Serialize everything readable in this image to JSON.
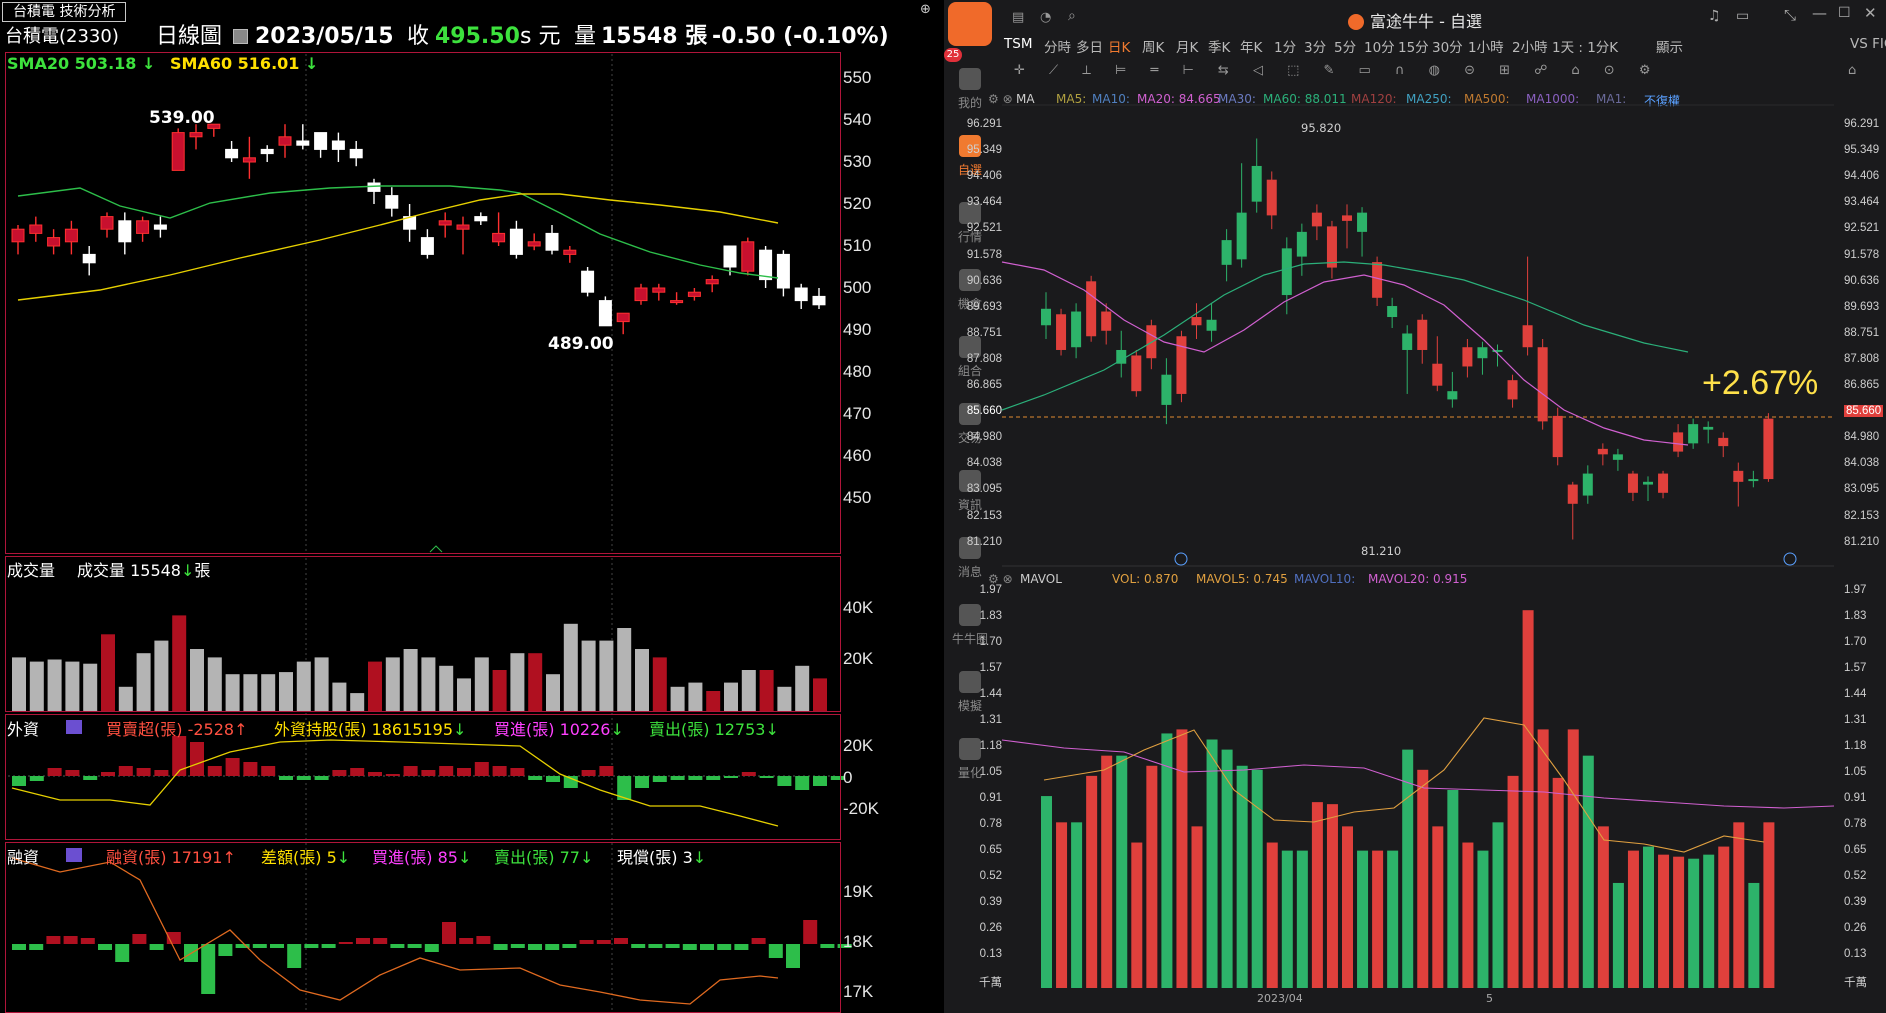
{
  "left": {
    "tab_label": "台積電 技術分析",
    "stock_name": "台積電(2330)",
    "period": "日線圖",
    "date": "2023/05/15",
    "close_label": "收",
    "close_value": "495.50",
    "unit": "s 元",
    "volume_label": "量",
    "volume_value": "15548 張",
    "change": "-0.50 (-0.10%)",
    "sma20": "SMA20 503.18",
    "sma60": "SMA60 516.01",
    "high_label": "539.00",
    "low_label": "489.00",
    "price_axis": [
      "550",
      "540",
      "530",
      "520",
      "510",
      "500",
      "490",
      "480",
      "470",
      "460",
      "450"
    ],
    "volume_panel": {
      "title": "成交量",
      "label": "成交量 15548",
      "unit": "張",
      "axis": [
        "40K",
        "20K"
      ]
    },
    "foreign_panel": {
      "title": "外資",
      "net": "買賣超(張) -2528",
      "holding": "外資持股(張) 18615195",
      "buy": "買進(張) 10226",
      "sell": "賣出(張) 12753",
      "axis": [
        "20K",
        "0",
        "-20K"
      ]
    },
    "margin_panel": {
      "title": "融資",
      "balance": "融資(張) 17191",
      "diff": "差額(張) 5",
      "buy": "買進(張) 85",
      "sell": "賣出(張) 77",
      "repay": "現償(張) 3",
      "axis": [
        "19K",
        "18K",
        "17K"
      ]
    }
  },
  "right": {
    "window_title": "富途牛牛 - 自選",
    "sidebar": [
      "我的",
      "自選",
      "行情",
      "機會",
      "組合",
      "交易",
      "資訊",
      "消息",
      "牛牛圈",
      "模擬",
      "量化"
    ],
    "messages_badge": "25",
    "symbol": "TSM",
    "timeframes": [
      "分時",
      "多日",
      "日K",
      "周K",
      "月K",
      "季K",
      "年K",
      "1分",
      "3分",
      "5分",
      "10分",
      "15分",
      "30分",
      "1小時",
      "2小時",
      "1天 : 1分K",
      "顯示"
    ],
    "vs_label": "VS FIG",
    "ma_bar": {
      "label": "MA",
      "ma5": "MA5:",
      "ma10": "MA10:",
      "ma20": "MA20: 84.665",
      "ma30": "MA30:",
      "ma60": "MA60: 88.011",
      "ma120": "MA120:",
      "ma250": "MA250:",
      "ma500": "MA500:",
      "ma1000": "MA1000:",
      "ma1": "MA1:",
      "adjust": "不復權"
    },
    "price_axis": [
      "96.291",
      "95.349",
      "94.406",
      "93.464",
      "92.521",
      "91.578",
      "90.636",
      "89.693",
      "88.751",
      "87.808",
      "86.865",
      "85.660",
      "84.980",
      "84.038",
      "83.095",
      "82.153",
      "81.210"
    ],
    "high_label": "95.820",
    "low_label": "81.210",
    "pct_change": "+2.67%",
    "vol_bar": {
      "label": "MAVOL",
      "vol": "VOL: 0.870",
      "mavol5": "MAVOL5: 0.745",
      "mavol10": "MAVOL10:",
      "mavol20": "MAVOL20: 0.915"
    },
    "vol_axis": [
      "1.97",
      "1.83",
      "1.70",
      "1.57",
      "1.44",
      "1.31",
      "1.18",
      "1.05",
      "0.91",
      "0.78",
      "0.65",
      "0.52",
      "0.39",
      "0.26",
      "0.13",
      "千萬"
    ],
    "date_labels": [
      "2023/04",
      "5"
    ],
    "colors": {
      "up": "#e0403c",
      "down": "#2db36a",
      "ma20": "#d060d0",
      "ma60": "#2bb07a"
    }
  }
}
